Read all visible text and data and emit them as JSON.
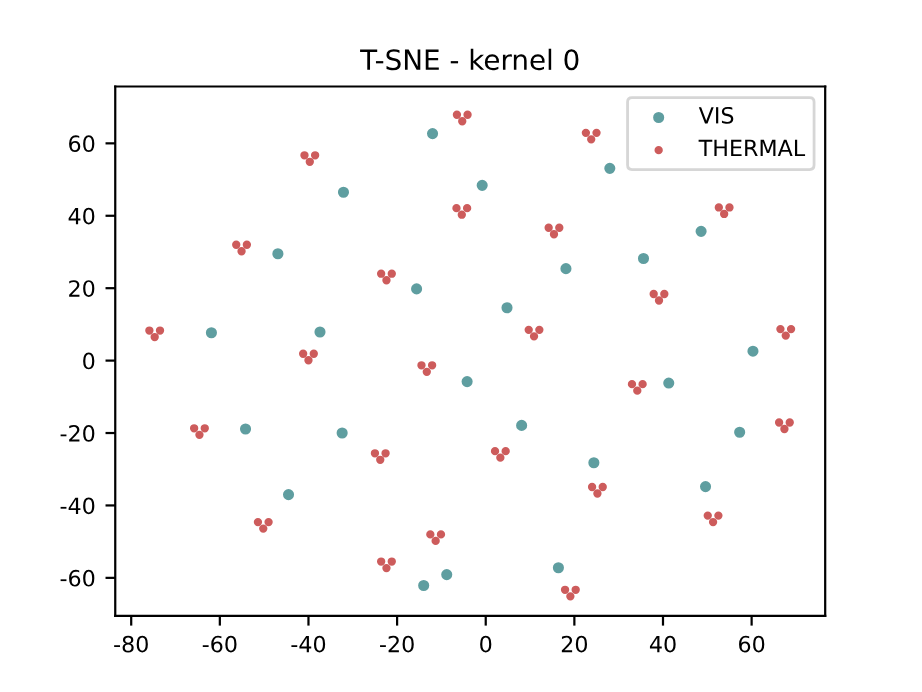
{
  "chart_data": {
    "type": "scatter",
    "title": "T-SNE - kernel 0",
    "xlim": [
      -83.6,
      76.6
    ],
    "ylim": [
      -70.5,
      75.7
    ],
    "xticks": [
      -80,
      -60,
      -40,
      -20,
      0,
      20,
      40,
      60
    ],
    "yticks": [
      -60,
      -40,
      -20,
      0,
      20,
      40,
      60
    ],
    "grid": false,
    "legend": "top right",
    "marker": "circle",
    "series": [
      {
        "name": "VIS",
        "color": "#5f9ea0",
        "x": [
          -12.0,
          -32.1,
          -0.8,
          28.0,
          -46.9,
          -15.6,
          18.1,
          35.6,
          48.6,
          4.8,
          -61.9,
          -37.4,
          60.3,
          -4.2,
          41.3,
          -54.2,
          -32.4,
          8.1,
          57.3,
          24.4,
          -44.5,
          49.6,
          -8.8,
          -14.0,
          16.4
        ],
        "values": [
          62.7,
          46.5,
          48.4,
          53.1,
          29.5,
          19.8,
          25.4,
          28.2,
          35.7,
          14.6,
          7.7,
          7.9,
          2.6,
          -5.8,
          -6.2,
          -18.9,
          -20.0,
          -17.9,
          -19.8,
          -28.2,
          -37.0,
          -34.8,
          -59.1,
          -62.1,
          -57.2
        ]
      },
      {
        "name": "THERMAL",
        "color": "#cd5c5c",
        "x": [
          -40.9,
          -38.5,
          -39.7,
          -6.5,
          -4.1,
          -5.3,
          22.6,
          25.0,
          23.8,
          -6.6,
          -4.2,
          -5.4,
          14.2,
          16.6,
          15.4,
          52.6,
          55.0,
          53.8,
          -56.3,
          -53.9,
          -55.1,
          -23.6,
          -21.2,
          -22.4,
          -75.9,
          -73.5,
          -74.7,
          -41.2,
          -38.8,
          -40.0,
          9.7,
          12.1,
          10.9,
          66.5,
          68.9,
          67.7,
          37.9,
          40.3,
          39.1,
          -14.5,
          -12.1,
          -13.3,
          33.0,
          35.4,
          34.2,
          -65.8,
          -63.4,
          -64.6,
          -25.0,
          -22.6,
          -23.8,
          2.1,
          4.5,
          3.3,
          66.2,
          68.6,
          67.4,
          24.0,
          26.4,
          25.2,
          -51.4,
          -49.0,
          -50.2,
          50.1,
          52.5,
          51.3,
          -12.5,
          -10.1,
          -11.3,
          -23.6,
          -21.2,
          -22.4,
          17.9,
          20.3,
          19.1
        ],
        "values": [
          56.7,
          56.7,
          54.9,
          67.9,
          67.9,
          66.1,
          62.9,
          62.9,
          61.1,
          42.1,
          42.1,
          40.3,
          36.7,
          36.7,
          34.9,
          42.3,
          42.3,
          40.5,
          32.0,
          32.0,
          30.2,
          24.0,
          24.0,
          22.2,
          8.3,
          8.3,
          6.5,
          1.9,
          1.9,
          0.1,
          8.5,
          8.5,
          6.7,
          8.7,
          8.7,
          6.9,
          18.4,
          18.4,
          16.6,
          -1.3,
          -1.3,
          -3.1,
          -6.5,
          -6.5,
          -8.3,
          -18.7,
          -18.7,
          -20.5,
          -25.6,
          -25.6,
          -27.4,
          -25.0,
          -25.0,
          -26.8,
          -17.1,
          -17.1,
          -18.9,
          -34.9,
          -34.9,
          -36.7,
          -44.6,
          -44.6,
          -46.4,
          -42.8,
          -42.8,
          -44.6,
          -48.0,
          -48.0,
          -49.8,
          -55.5,
          -55.5,
          -57.3,
          -63.3,
          -63.3,
          -65.1
        ]
      }
    ]
  }
}
